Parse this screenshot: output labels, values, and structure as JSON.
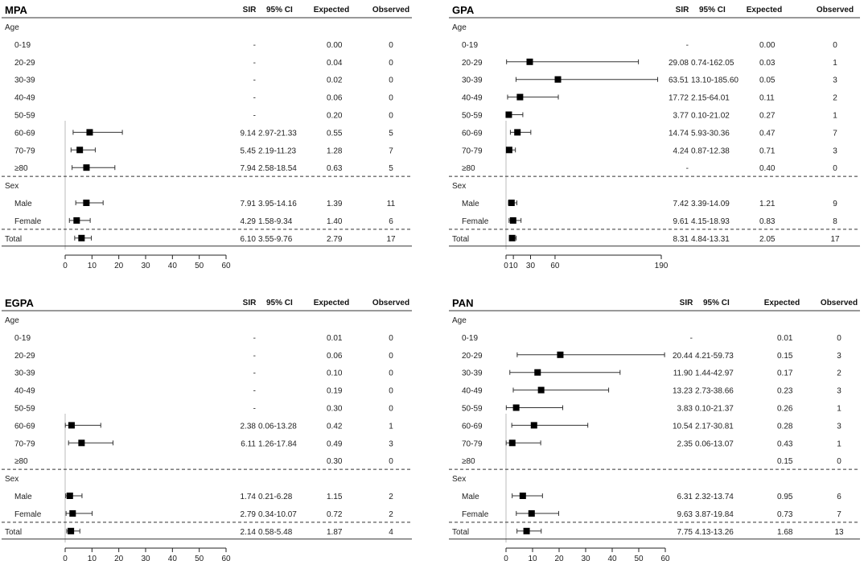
{
  "chart_data": [
    {
      "type": "forest",
      "title": "MPA",
      "columns": [
        "SIR",
        "95% CI",
        "Expected",
        "Observed"
      ],
      "xlim": [
        0,
        60
      ],
      "xticks": [
        "0",
        "10",
        "20",
        "30",
        "40",
        "50",
        "60"
      ],
      "xtick_values": [
        0,
        10,
        20,
        30,
        40,
        50,
        60
      ],
      "sections": [
        {
          "label": "Age",
          "rows": [
            {
              "label": "0-19",
              "sir": "-",
              "ci": "",
              "expected": "0.00",
              "observed": "0"
            },
            {
              "label": "20-29",
              "sir": "-",
              "ci": "",
              "expected": "0.04",
              "observed": "0"
            },
            {
              "label": "30-39",
              "sir": "-",
              "ci": "",
              "expected": "0.02",
              "observed": "0"
            },
            {
              "label": "40-49",
              "sir": "-",
              "ci": "",
              "expected": "0.06",
              "observed": "0"
            },
            {
              "label": "50-59",
              "sir": "-",
              "ci": "",
              "expected": "0.20",
              "observed": "0"
            },
            {
              "label": "60-69",
              "sir": "9.14",
              "ci": "2.97-21.33",
              "expected": "0.55",
              "observed": "5"
            },
            {
              "label": "70-79",
              "sir": "5.45",
              "ci": "2.19-11.23",
              "expected": "1.28",
              "observed": "7"
            },
            {
              "label": "≥80",
              "sir": "7.94",
              "ci": "2.58-18.54",
              "expected": "0.63",
              "observed": "5"
            }
          ]
        },
        {
          "label": "Sex",
          "rows": [
            {
              "label": "Male",
              "sir": "7.91",
              "ci": "3.95-14.16",
              "expected": "1.39",
              "observed": "11"
            },
            {
              "label": "Female",
              "sir": "4.29",
              "ci": "1.58-9.34",
              "expected": "1.40",
              "observed": "6"
            }
          ]
        }
      ],
      "total": {
        "label": "Total",
        "sir": "6.10",
        "ci": "3.55-9.76",
        "expected": "2.79",
        "observed": "17"
      }
    },
    {
      "type": "forest",
      "title": "GPA",
      "columns": [
        "SIR",
        "95% CI",
        "Expected",
        "Observed"
      ],
      "xlim": [
        0,
        190
      ],
      "xticks": [
        "0",
        "10",
        "30",
        "60",
        "190"
      ],
      "xtick_values": [
        0,
        10,
        30,
        60,
        190
      ],
      "sections": [
        {
          "label": "Age",
          "rows": [
            {
              "label": "0-19",
              "sir": "-",
              "ci": "",
              "expected": "0.00",
              "observed": "0"
            },
            {
              "label": "20-29",
              "sir": "29.08",
              "ci": "0.74-162.05",
              "expected": "0.03",
              "observed": "1"
            },
            {
              "label": "30-39",
              "sir": "63.51",
              "ci": "13.10-185.60",
              "expected": "0.05",
              "observed": "3"
            },
            {
              "label": "40-49",
              "sir": "17.72",
              "ci": "2.15-64.01",
              "expected": "0.11",
              "observed": "2"
            },
            {
              "label": "50-59",
              "sir": "3.77",
              "ci": "0.10-21.02",
              "expected": "0.27",
              "observed": "1"
            },
            {
              "label": "60-69",
              "sir": "14.74",
              "ci": "5.93-30.36",
              "expected": "0.47",
              "observed": "7"
            },
            {
              "label": "70-79",
              "sir": "4.24",
              "ci": "0.87-12.38",
              "expected": "0.71",
              "observed": "3"
            },
            {
              "label": "≥80",
              "sir": "-",
              "ci": "",
              "expected": "0.40",
              "observed": "0"
            }
          ]
        },
        {
          "label": "Sex",
          "rows": [
            {
              "label": "Male",
              "sir": "7.42",
              "ci": "3.39-14.09",
              "expected": "1.21",
              "observed": "9"
            },
            {
              "label": "Female",
              "sir": "9.61",
              "ci": "4.15-18.93",
              "expected": "0.83",
              "observed": "8"
            }
          ]
        }
      ],
      "total": {
        "label": "Total",
        "sir": "8.31",
        "ci": "4.84-13.31",
        "expected": "2.05",
        "observed": "17"
      }
    },
    {
      "type": "forest",
      "title": "EGPA",
      "columns": [
        "SIR",
        "95% CI",
        "Expected",
        "Observed"
      ],
      "xlim": [
        0,
        60
      ],
      "xticks": [
        "0",
        "10",
        "20",
        "30",
        "40",
        "50",
        "60"
      ],
      "xtick_values": [
        0,
        10,
        20,
        30,
        40,
        50,
        60
      ],
      "sections": [
        {
          "label": "Age",
          "rows": [
            {
              "label": "0-19",
              "sir": "-",
              "ci": "",
              "expected": "0.01",
              "observed": "0"
            },
            {
              "label": "20-29",
              "sir": "-",
              "ci": "",
              "expected": "0.06",
              "observed": "0"
            },
            {
              "label": "30-39",
              "sir": "-",
              "ci": "",
              "expected": "0.10",
              "observed": "0"
            },
            {
              "label": "40-49",
              "sir": "-",
              "ci": "",
              "expected": "0.19",
              "observed": "0"
            },
            {
              "label": "50-59",
              "sir": "-",
              "ci": "",
              "expected": "0.30",
              "observed": "0"
            },
            {
              "label": "60-69",
              "sir": "2.38",
              "ci": "0.06-13.28",
              "expected": "0.42",
              "observed": "1"
            },
            {
              "label": "70-79",
              "sir": "6.11",
              "ci": "1.26-17.84",
              "expected": "0.49",
              "observed": "3"
            },
            {
              "label": "≥80",
              "sir": "",
              "ci": "",
              "expected": "0.30",
              "observed": "0"
            }
          ]
        },
        {
          "label": "Sex",
          "rows": [
            {
              "label": "Male",
              "sir": "1.74",
              "ci": "0.21-6.28",
              "expected": "1.15",
              "observed": "2"
            },
            {
              "label": "Female",
              "sir": "2.79",
              "ci": "0.34-10.07",
              "expected": "0.72",
              "observed": "2"
            }
          ]
        }
      ],
      "total": {
        "label": "Total",
        "sir": "2.14",
        "ci": "0.58-5.48",
        "expected": "1.87",
        "observed": "4"
      }
    },
    {
      "type": "forest",
      "title": "PAN",
      "columns": [
        "SIR",
        "95% CI",
        "Expected",
        "Observed"
      ],
      "xlim": [
        0,
        60
      ],
      "xticks": [
        "0",
        "10",
        "20",
        "30",
        "40",
        "50",
        "60"
      ],
      "xtick_values": [
        0,
        10,
        20,
        30,
        40,
        50,
        60
      ],
      "sections": [
        {
          "label": "Age",
          "rows": [
            {
              "label": "0-19",
              "sir": "-",
              "ci": "",
              "expected": "0.01",
              "observed": "0"
            },
            {
              "label": "20-29",
              "sir": "20.44",
              "ci": "4.21-59.73",
              "expected": "0.15",
              "observed": "3"
            },
            {
              "label": "30-39",
              "sir": "11.90",
              "ci": "1.44-42.97",
              "expected": "0.17",
              "observed": "2"
            },
            {
              "label": "40-49",
              "sir": "13.23",
              "ci": "2.73-38.66",
              "expected": "0.23",
              "observed": "3"
            },
            {
              "label": "50-59",
              "sir": "3.83",
              "ci": "0.10-21.37",
              "expected": "0.26",
              "observed": "1"
            },
            {
              "label": "60-69",
              "sir": "10.54",
              "ci": "2.17-30.81",
              "expected": "0.28",
              "observed": "3"
            },
            {
              "label": "70-79",
              "sir": "2.35",
              "ci": "0.06-13.07",
              "expected": "0.43",
              "observed": "1"
            },
            {
              "label": "≥80",
              "sir": "",
              "ci": "",
              "expected": "0.15",
              "observed": "0"
            }
          ]
        },
        {
          "label": "Sex",
          "rows": [
            {
              "label": "Male",
              "sir": "6.31",
              "ci": "2.32-13.74",
              "expected": "0.95",
              "observed": "6"
            },
            {
              "label": "Female",
              "sir": "9.63",
              "ci": "3.87-19.84",
              "expected": "0.73",
              "observed": "7"
            }
          ]
        }
      ],
      "total": {
        "label": "Total",
        "sir": "7.75",
        "ci": "4.13-13.26",
        "expected": "1.68",
        "observed": "13"
      }
    }
  ]
}
